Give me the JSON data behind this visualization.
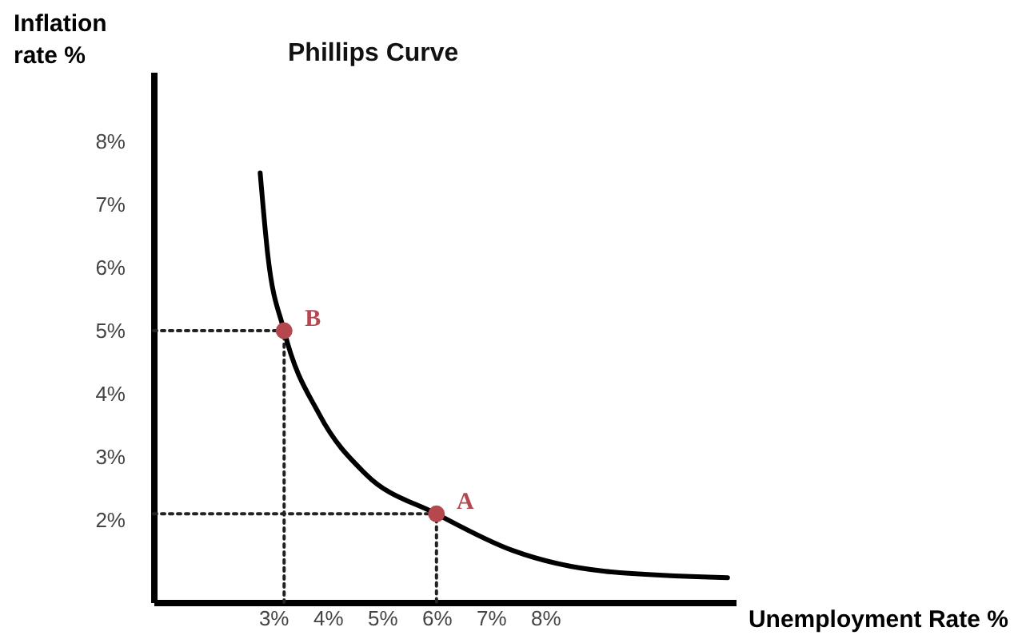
{
  "chart_data": {
    "type": "line",
    "title": "Phillips Curve",
    "xlabel": "Unemployment Rate %",
    "ylabel": "Inflation rate %",
    "xlim": [
      0.8,
      11.5
    ],
    "ylim": [
      0.7,
      9.1
    ],
    "xticks": [
      {
        "value": 3,
        "label": "3%"
      },
      {
        "value": 4,
        "label": "4%"
      },
      {
        "value": 5,
        "label": "5%"
      },
      {
        "value": 6,
        "label": "6%"
      },
      {
        "value": 7,
        "label": "7%"
      },
      {
        "value": 8,
        "label": "8%"
      }
    ],
    "yticks": [
      {
        "value": 2,
        "label": "2%"
      },
      {
        "value": 3,
        "label": "3%"
      },
      {
        "value": 4,
        "label": "4%"
      },
      {
        "value": 5,
        "label": "5%"
      },
      {
        "value": 6,
        "label": "6%"
      },
      {
        "value": 7,
        "label": "7%"
      },
      {
        "value": 8,
        "label": "8%"
      }
    ],
    "grid": false,
    "series": [
      {
        "line_style": "dotted",
        "color": "#222222",
        "x": [
          0.8,
          3.2,
          3.2
        ],
        "values": [
          5,
          5,
          0.7
        ]
      },
      {
        "line_style": "dotted",
        "color": "#222222",
        "x": [
          0.8,
          6,
          6
        ],
        "values": [
          2.1,
          2.1,
          0.7
        ]
      },
      {
        "line_style": "solid",
        "marker": "none",
        "color": "#000000",
        "x": [
          2.76,
          2.9,
          3.2,
          3.85,
          4.7,
          6,
          7.4,
          9.1,
          11.35
        ],
        "values": [
          7.5,
          6.2,
          5.0,
          3.67,
          2.73,
          2.1,
          1.52,
          1.19,
          1.09
        ]
      },
      {
        "type": "scatter",
        "marker": "circle",
        "color": "#b5474f",
        "x": [
          3.2,
          6
        ],
        "values": [
          5,
          2.1
        ]
      }
    ],
    "annotations": [
      {
        "text": "B",
        "x": 3.2,
        "y": 5
      },
      {
        "text": "A",
        "x": 6,
        "y": 2.1
      }
    ]
  }
}
